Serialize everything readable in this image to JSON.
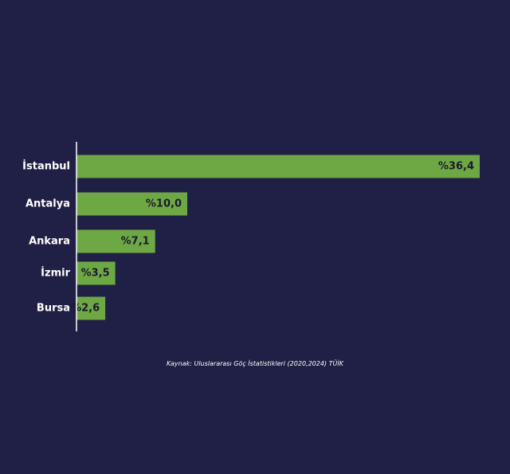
{
  "chart_data": {
    "type": "bar",
    "orientation": "horizontal",
    "categories": [
      "İstanbul",
      "Antalya",
      "Ankara",
      "İzmir",
      "Bursa"
    ],
    "values": [
      36.4,
      10.0,
      7.1,
      3.5,
      2.6
    ],
    "value_labels": [
      "%36,4",
      "%10,0",
      "%7,1",
      "%3,5",
      "%2,6"
    ],
    "xlim": [
      0,
      36.4
    ],
    "grid": false,
    "bar_color": "#6ea844",
    "axis_color": "#ffffff"
  },
  "source": "Kaynak: Uluslararası Göç İstatistikleri (2020,2024) TÜİK",
  "background": "#201f45"
}
